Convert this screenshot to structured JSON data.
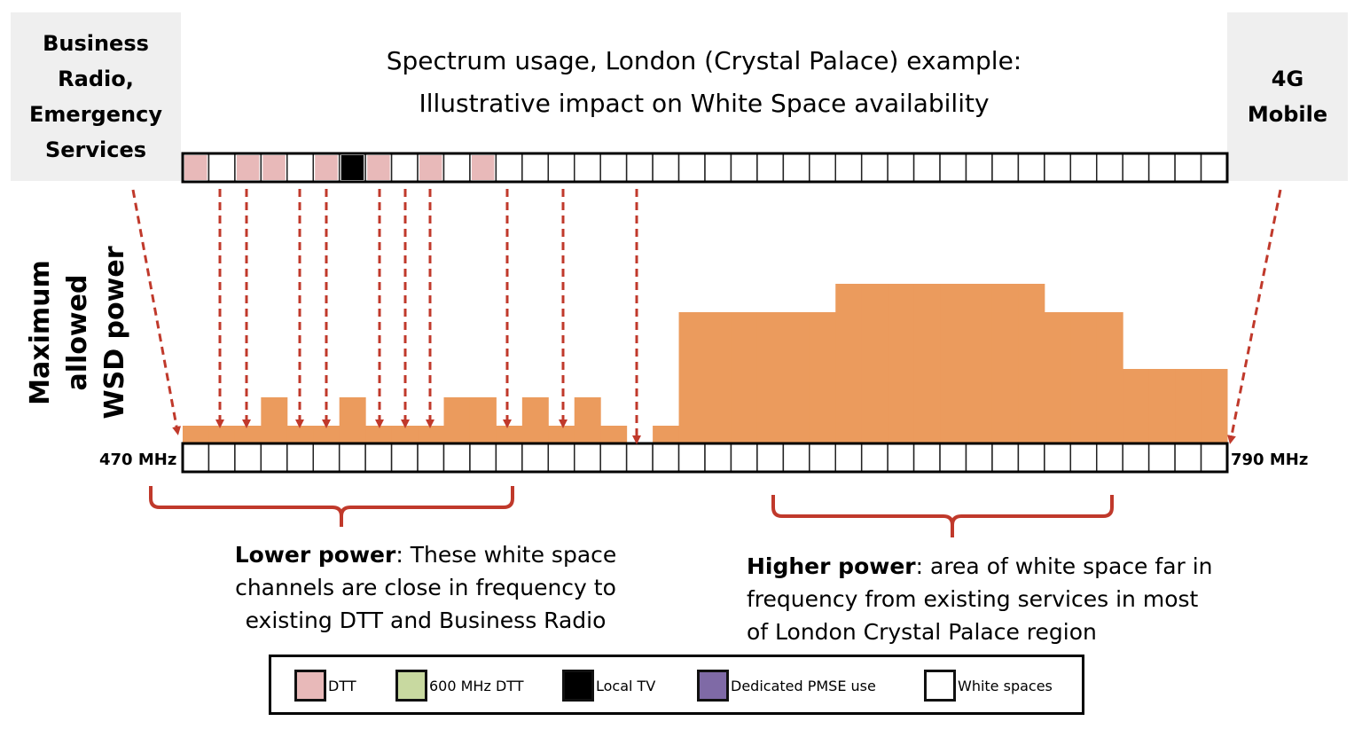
{
  "header": {
    "left_label_lines": [
      "Business",
      "Radio,",
      "Emergency",
      "Services"
    ],
    "right_label_lines": [
      "4G",
      "Mobile"
    ],
    "title_line1": "Spectrum usage, London (Crystal Palace) example:",
    "title_line2": "Illustrative impact on White Space availability"
  },
  "y_axis_label_lines": [
    "Maximum allowed",
    "WSD power"
  ],
  "frequency": {
    "start": "470 MHz",
    "end": "790 MHz"
  },
  "colors": {
    "DTT": "#e8b9b9",
    "600 MHz DTT": "#c8d9a0",
    "Local TV": "#000000",
    "Dedicated PMSE use": "#7f6aa6",
    "White spaces": "#ffffff",
    "power": "#eb9b5d",
    "arrow": "#c0392b",
    "bracket": "#c0392b"
  },
  "top_channels": [
    "DTT",
    "White spaces",
    "DTT",
    "DTT",
    "White spaces",
    "DTT",
    "Local TV",
    "DTT",
    "White spaces",
    "DTT",
    "White spaces",
    "DTT",
    "White spaces",
    "White spaces",
    "White spaces",
    "White spaces",
    "White spaces",
    "White spaces",
    "White spaces",
    "White spaces",
    "White spaces",
    "White spaces",
    "White spaces",
    "White spaces",
    "White spaces",
    "White spaces",
    "White spaces",
    "White spaces",
    "White spaces",
    "White spaces",
    "White spaces",
    "White spaces",
    "White spaces",
    "White spaces",
    "White spaces",
    "White spaces",
    "White spaces",
    "White spaces",
    "White spaces",
    "White spaces"
  ],
  "top_channel_offset_note": "",
  "power_levels": [
    1,
    1,
    1,
    2,
    1,
    1,
    2,
    1,
    1,
    1,
    2,
    2,
    1,
    2,
    1,
    2,
    1,
    0,
    1,
    5,
    5,
    5,
    5,
    5,
    5,
    6,
    6,
    6,
    6,
    6,
    6,
    6,
    6,
    5,
    5,
    5,
    3,
    3,
    3,
    3
  ],
  "notes": {
    "lower_bold": "Lower power",
    "lower_text": ": These white space channels are close in frequency to existing DTT and Business Radio",
    "higher_bold": "Higher power",
    "higher_text": ": area of white space far in frequency from existing services in most of London Crystal Palace region"
  },
  "legend": [
    {
      "label": "DTT",
      "color": "#e8b9b9"
    },
    {
      "label": "600 MHz DTT",
      "color": "#c8d9a0"
    },
    {
      "label": "Local TV",
      "color": "#000000"
    },
    {
      "label": "Dedicated PMSE use",
      "color": "#7f6aa6"
    },
    {
      "label": "White spaces",
      "color": "#ffffff"
    }
  ]
}
